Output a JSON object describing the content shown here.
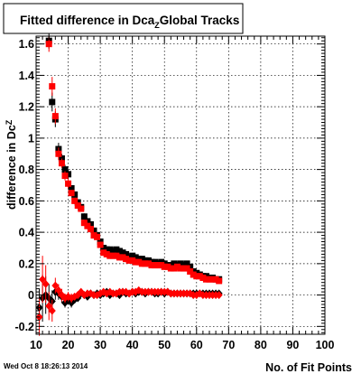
{
  "chart_data": {
    "type": "scatter",
    "title": "Fitted difference in Dca",
    "title_subscript": "Z",
    "title_suffix": "Global Tracks",
    "xlabel": "No. of Fit Points",
    "ylabel": "difference in Dc",
    "ylabel_subscript": "Z",
    "xlim": [
      10,
      100
    ],
    "ylim": [
      -0.25,
      1.65
    ],
    "xticks": [
      10,
      20,
      30,
      40,
      50,
      60,
      70,
      80,
      90,
      100
    ],
    "yticks": [
      -0.2,
      0,
      0.2,
      0.4,
      0.6,
      0.8,
      1,
      1.2,
      1.4,
      1.6
    ],
    "grid": true,
    "timestamp": "Wed Oct  8 18:26:13 2014",
    "colors": {
      "black": "#000000",
      "red": "#ff0000"
    },
    "series": [
      {
        "marker": "square",
        "color": "#000000",
        "x": [
          14,
          15,
          16,
          17,
          18,
          19,
          20,
          21,
          22,
          23,
          24,
          25,
          26,
          27,
          28,
          29,
          30,
          31,
          32,
          33,
          34,
          35,
          36,
          37,
          38,
          39,
          40,
          41,
          42,
          43,
          44,
          45,
          46,
          47,
          48,
          49,
          50,
          51,
          52,
          53,
          54,
          55,
          56,
          57,
          58,
          59,
          60,
          61,
          62,
          63,
          64,
          65,
          66,
          67
        ],
        "y": [
          1.62,
          1.23,
          1.12,
          0.93,
          0.87,
          0.8,
          0.77,
          0.68,
          0.64,
          0.59,
          0.56,
          0.5,
          0.47,
          0.45,
          0.41,
          0.38,
          0.34,
          0.3,
          0.29,
          0.29,
          0.28,
          0.29,
          0.28,
          0.27,
          0.26,
          0.24,
          0.25,
          0.24,
          0.23,
          0.23,
          0.22,
          0.22,
          0.21,
          0.21,
          0.2,
          0.21,
          0.2,
          0.19,
          0.19,
          0.2,
          0.19,
          0.2,
          0.19,
          0.2,
          0.18,
          0.15,
          0.14,
          0.13,
          0.12,
          0.12,
          0.11,
          0.11,
          0.1,
          0.1
        ],
        "err": [
          0.05,
          0.06,
          0.05,
          0.04,
          0.03,
          0.03,
          0.03,
          0.02,
          0.02,
          0.02,
          0.02,
          0.02,
          0.02,
          0.02,
          0.02,
          0.02,
          0.01,
          0.01,
          0.01,
          0.01,
          0.01,
          0.01,
          0.01,
          0.01,
          0.01,
          0.01,
          0.01,
          0.01,
          0.01,
          0.01,
          0.01,
          0.01,
          0.01,
          0.01,
          0.01,
          0.01,
          0.01,
          0.01,
          0.01,
          0.01,
          0.01,
          0.01,
          0.01,
          0.01,
          0.01,
          0.01,
          0.01,
          0.01,
          0.01,
          0.01,
          0.01,
          0.01,
          0.01,
          0.01
        ]
      },
      {
        "marker": "square",
        "color": "#ff0000",
        "x": [
          14,
          15,
          16,
          17,
          18,
          19,
          20,
          21,
          22,
          23,
          24,
          25,
          26,
          27,
          28,
          29,
          30,
          31,
          32,
          33,
          34,
          35,
          36,
          37,
          38,
          39,
          40,
          41,
          42,
          43,
          44,
          45,
          46,
          47,
          48,
          49,
          50,
          51,
          52,
          53,
          54,
          55,
          56,
          57,
          58,
          59,
          60,
          61,
          62,
          63,
          64,
          65,
          66,
          67
        ],
        "y": [
          1.6,
          1.33,
          1.14,
          0.9,
          0.84,
          0.76,
          0.71,
          0.65,
          0.6,
          0.57,
          0.55,
          0.46,
          0.44,
          0.42,
          0.38,
          0.37,
          0.32,
          0.27,
          0.26,
          0.25,
          0.25,
          0.25,
          0.24,
          0.24,
          0.23,
          0.22,
          0.22,
          0.21,
          0.21,
          0.2,
          0.2,
          0.2,
          0.19,
          0.19,
          0.19,
          0.19,
          0.18,
          0.18,
          0.17,
          0.17,
          0.18,
          0.17,
          0.17,
          0.17,
          0.15,
          0.13,
          0.12,
          0.12,
          0.11,
          0.1,
          0.1,
          0.1,
          0.1,
          0.09
        ],
        "err": [
          0.05,
          0.06,
          0.05,
          0.04,
          0.03,
          0.03,
          0.03,
          0.02,
          0.02,
          0.02,
          0.02,
          0.02,
          0.02,
          0.02,
          0.02,
          0.02,
          0.01,
          0.01,
          0.01,
          0.01,
          0.01,
          0.01,
          0.01,
          0.01,
          0.01,
          0.01,
          0.01,
          0.01,
          0.01,
          0.01,
          0.01,
          0.01,
          0.01,
          0.01,
          0.01,
          0.01,
          0.01,
          0.01,
          0.01,
          0.01,
          0.01,
          0.01,
          0.01,
          0.01,
          0.01,
          0.01,
          0.01,
          0.01,
          0.01,
          0.01,
          0.01,
          0.01,
          0.01,
          0.01
        ]
      },
      {
        "marker": "diamond",
        "color": "#000000",
        "x": [
          11,
          12,
          13,
          14,
          15,
          16,
          17,
          18,
          19,
          20,
          21,
          22,
          23,
          24,
          25,
          26,
          27,
          28,
          29,
          30,
          31,
          32,
          33,
          34,
          35,
          36,
          37,
          38,
          39,
          40,
          41,
          42,
          43,
          44,
          45,
          46,
          47,
          48,
          49,
          50,
          51,
          52,
          53,
          54,
          55,
          56,
          57,
          58,
          59,
          60,
          61,
          62,
          63,
          64,
          65,
          66,
          67
        ],
        "y": [
          -0.08,
          -0.02,
          0.0,
          -0.02,
          -0.04,
          0.02,
          0.01,
          -0.01,
          -0.05,
          -0.03,
          -0.05,
          -0.03,
          -0.02,
          0.01,
          0.0,
          -0.01,
          0.01,
          0.0,
          0.01,
          0.0,
          0.01,
          0.02,
          0.0,
          0.01,
          0.01,
          0.0,
          0.02,
          0.01,
          0.01,
          0.02,
          0.01,
          0.02,
          0.02,
          0.01,
          0.02,
          0.02,
          0.01,
          0.01,
          0.02,
          0.01,
          0.02,
          0.01,
          0.01,
          0.01,
          0.01,
          0.01,
          0.01,
          0.01,
          0.01,
          0.01,
          0.01,
          0.01,
          0.01,
          0.01,
          0.01,
          0.01,
          0.01
        ],
        "err": [
          0.12,
          0.15,
          0.12,
          0.09,
          0.07,
          0.05,
          0.04,
          0.04,
          0.03,
          0.03,
          0.03,
          0.02,
          0.02,
          0.02,
          0.02,
          0.02,
          0.02,
          0.02,
          0.02,
          0.02,
          0.01,
          0.01,
          0.01,
          0.01,
          0.01,
          0.01,
          0.01,
          0.01,
          0.01,
          0.01,
          0.01,
          0.01,
          0.01,
          0.01,
          0.01,
          0.01,
          0.01,
          0.01,
          0.01,
          0.01,
          0.01,
          0.01,
          0.01,
          0.01,
          0.01,
          0.01,
          0.01,
          0.01,
          0.01,
          0.01,
          0.01,
          0.01,
          0.01,
          0.01,
          0.01,
          0.01,
          0.01
        ]
      },
      {
        "marker": "diamond",
        "color": "#ff0000",
        "x": [
          11,
          12,
          13,
          14,
          15,
          16,
          17,
          18,
          19,
          20,
          21,
          22,
          23,
          24,
          25,
          26,
          27,
          28,
          29,
          30,
          31,
          32,
          33,
          34,
          35,
          36,
          37,
          38,
          39,
          40,
          41,
          42,
          43,
          44,
          45,
          46,
          47,
          48,
          49,
          50,
          51,
          52,
          53,
          54,
          55,
          56,
          57,
          58,
          59,
          60,
          61,
          62,
          63,
          64,
          65,
          66,
          67
        ],
        "y": [
          -0.14,
          0.1,
          0.07,
          -0.07,
          -0.1,
          0.06,
          0.03,
          0.0,
          -0.02,
          -0.01,
          -0.02,
          -0.01,
          0.0,
          0.02,
          0.0,
          0.01,
          0.01,
          0.0,
          0.0,
          0.01,
          0.02,
          0.01,
          0.02,
          0.01,
          0.01,
          0.02,
          0.02,
          0.02,
          0.01,
          0.02,
          0.02,
          0.03,
          0.02,
          0.02,
          0.02,
          0.02,
          0.02,
          0.02,
          0.02,
          0.02,
          0.02,
          0.01,
          0.01,
          0.01,
          0.01,
          0.01,
          0.01,
          0.01,
          0.0,
          0.0,
          0.01,
          0.0,
          0.0,
          0.0,
          0.0,
          0.0,
          0.0
        ],
        "err": [
          0.12,
          0.15,
          0.12,
          0.09,
          0.07,
          0.05,
          0.04,
          0.04,
          0.03,
          0.03,
          0.03,
          0.02,
          0.02,
          0.02,
          0.02,
          0.02,
          0.02,
          0.02,
          0.02,
          0.02,
          0.01,
          0.01,
          0.01,
          0.01,
          0.01,
          0.01,
          0.01,
          0.01,
          0.01,
          0.01,
          0.01,
          0.01,
          0.01,
          0.01,
          0.01,
          0.01,
          0.01,
          0.01,
          0.01,
          0.01,
          0.01,
          0.01,
          0.01,
          0.01,
          0.01,
          0.01,
          0.01,
          0.01,
          0.01,
          0.01,
          0.01,
          0.01,
          0.01,
          0.01,
          0.01,
          0.01,
          0.01
        ]
      }
    ]
  }
}
